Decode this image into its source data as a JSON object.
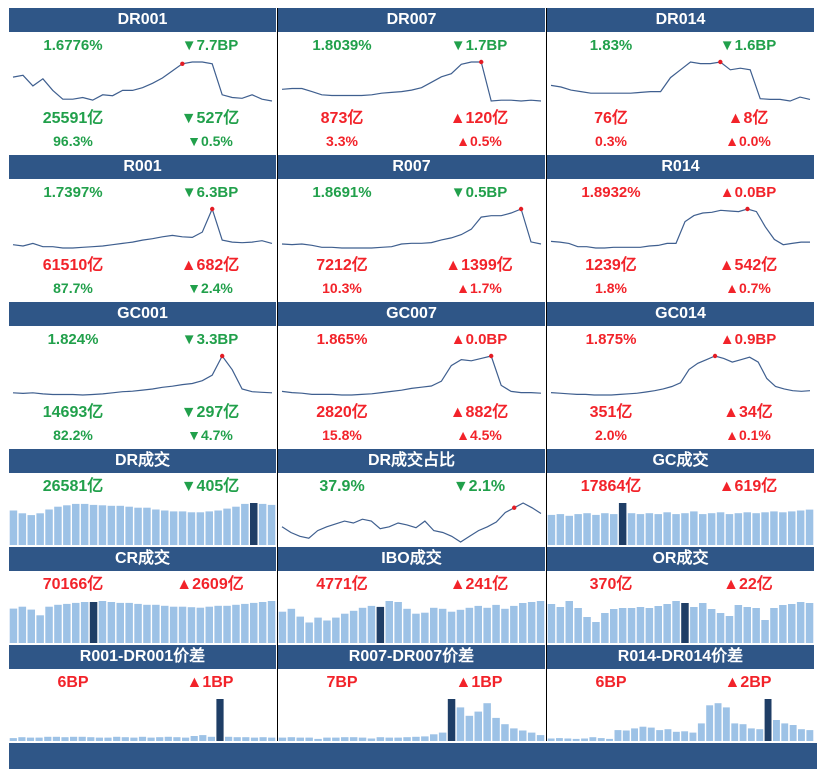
{
  "colors": {
    "header_bg": "#2f5687",
    "up": "#f2232a",
    "down": "#21a04b",
    "line": "#3f5f8f",
    "bar": "#9dc2e6",
    "bar_highlight": "#1f3e66",
    "marker": "#e31c24"
  },
  "rate_rows": [
    [
      {
        "title": "DR001",
        "rate": "1.6776%",
        "rate_dir": "down",
        "change": "▼7.7BP",
        "change_dir": "down",
        "volume": "25591亿",
        "volume_dir": "down",
        "volume_change": "▼527亿",
        "volume_change_dir": "down",
        "share": "96.3%",
        "share_dir": "down",
        "share_change": "▼0.5%",
        "share_change_dir": "down"
      },
      {
        "title": "DR007",
        "rate": "1.8039%",
        "rate_dir": "down",
        "change": "▼1.7BP",
        "change_dir": "down",
        "volume": "873亿",
        "volume_dir": "up",
        "volume_change": "▲120亿",
        "volume_change_dir": "up",
        "share": "3.3%",
        "share_dir": "up",
        "share_change": "▲0.5%",
        "share_change_dir": "up"
      },
      {
        "title": "DR014",
        "rate": "1.83%",
        "rate_dir": "down",
        "change": "▼1.6BP",
        "change_dir": "down",
        "volume": "76亿",
        "volume_dir": "up",
        "volume_change": "▲8亿",
        "volume_change_dir": "up",
        "share": "0.3%",
        "share_dir": "up",
        "share_change": "▲0.0%",
        "share_change_dir": "up"
      }
    ],
    [
      {
        "title": "R001",
        "rate": "1.7397%",
        "rate_dir": "down",
        "change": "▼6.3BP",
        "change_dir": "down",
        "volume": "61510亿",
        "volume_dir": "up",
        "volume_change": "▲682亿",
        "volume_change_dir": "up",
        "share": "87.7%",
        "share_dir": "down",
        "share_change": "▼2.4%",
        "share_change_dir": "down"
      },
      {
        "title": "R007",
        "rate": "1.8691%",
        "rate_dir": "down",
        "change": "▼0.5BP",
        "change_dir": "down",
        "volume": "7212亿",
        "volume_dir": "up",
        "volume_change": "▲1399亿",
        "volume_change_dir": "up",
        "share": "10.3%",
        "share_dir": "up",
        "share_change": "▲1.7%",
        "share_change_dir": "up"
      },
      {
        "title": "R014",
        "rate": "1.8932%",
        "rate_dir": "up",
        "change": "▲0.0BP",
        "change_dir": "up",
        "volume": "1239亿",
        "volume_dir": "up",
        "volume_change": "▲542亿",
        "volume_change_dir": "up",
        "share": "1.8%",
        "share_dir": "up",
        "share_change": "▲0.7%",
        "share_change_dir": "up"
      }
    ],
    [
      {
        "title": "GC001",
        "rate": "1.824%",
        "rate_dir": "down",
        "change": "▼3.3BP",
        "change_dir": "down",
        "volume": "14693亿",
        "volume_dir": "down",
        "volume_change": "▼297亿",
        "volume_change_dir": "down",
        "share": "82.2%",
        "share_dir": "down",
        "share_change": "▼4.7%",
        "share_change_dir": "down"
      },
      {
        "title": "GC007",
        "rate": "1.865%",
        "rate_dir": "up",
        "change": "▲0.0BP",
        "change_dir": "up",
        "volume": "2820亿",
        "volume_dir": "up",
        "volume_change": "▲882亿",
        "volume_change_dir": "up",
        "share": "15.8%",
        "share_dir": "up",
        "share_change": "▲4.5%",
        "share_change_dir": "up"
      },
      {
        "title": "GC014",
        "rate": "1.875%",
        "rate_dir": "up",
        "change": "▲0.9BP",
        "change_dir": "up",
        "volume": "351亿",
        "volume_dir": "up",
        "volume_change": "▲34亿",
        "volume_change_dir": "up",
        "share": "2.0%",
        "share_dir": "up",
        "share_change": "▲0.1%",
        "share_change_dir": "up"
      }
    ]
  ],
  "volume_rows": [
    [
      {
        "title": "DR成交",
        "kind": "bar",
        "value": "26581亿",
        "value_dir": "down",
        "change": "▼405亿",
        "change_dir": "down"
      },
      {
        "title": "DR成交占比",
        "kind": "line",
        "value": "37.9%",
        "value_dir": "down",
        "change": "▼2.1%",
        "change_dir": "down"
      },
      {
        "title": "GC成交",
        "kind": "bar",
        "value": "17864亿",
        "value_dir": "up",
        "change": "▲619亿",
        "change_dir": "up"
      }
    ],
    [
      {
        "title": "CR成交",
        "kind": "bar",
        "value": "70166亿",
        "value_dir": "up",
        "change": "▲2609亿",
        "change_dir": "up"
      },
      {
        "title": "IBO成交",
        "kind": "bar",
        "value": "4771亿",
        "value_dir": "up",
        "change": "▲241亿",
        "change_dir": "up"
      },
      {
        "title": "OR成交",
        "kind": "bar",
        "value": "370亿",
        "value_dir": "up",
        "change": "▲22亿",
        "change_dir": "up"
      }
    ],
    [
      {
        "title": "R001-DR001价差",
        "kind": "bar",
        "value": "6BP",
        "value_dir": "up",
        "change": "▲1BP",
        "change_dir": "up"
      },
      {
        "title": "R007-DR007价差",
        "kind": "bar",
        "value": "7BP",
        "value_dir": "up",
        "change": "▲1BP",
        "change_dir": "up"
      },
      {
        "title": "R014-DR014价差",
        "kind": "bar",
        "value": "6BP",
        "value_dir": "up",
        "change": "▲2BP",
        "change_dir": "up"
      }
    ]
  ],
  "chart_data": [
    {
      "id": "DR001",
      "type": "line",
      "title": "DR001",
      "values": [
        45,
        47,
        35,
        43,
        30,
        20,
        20,
        22,
        19,
        25,
        24,
        30,
        30,
        33,
        38,
        44,
        52,
        60,
        62,
        62,
        60,
        25,
        22,
        21,
        25,
        20,
        18
      ],
      "highlight_index": 17
    },
    {
      "id": "DR007",
      "type": "line",
      "title": "DR007",
      "values": [
        35,
        36,
        36,
        32,
        28,
        27,
        27,
        27,
        27,
        28,
        30,
        31,
        32,
        34,
        37,
        44,
        51,
        55,
        67,
        70,
        70,
        20,
        21,
        21,
        20,
        21,
        20
      ],
      "highlight_index": 20
    },
    {
      "id": "DR014",
      "type": "line",
      "title": "DR014",
      "values": [
        40,
        38,
        34,
        32,
        30,
        30,
        30,
        30,
        30,
        31,
        32,
        32,
        50,
        60,
        70,
        68,
        68,
        70,
        60,
        62,
        60,
        23,
        22,
        22,
        20,
        25,
        22
      ],
      "highlight_index": 17
    },
    {
      "id": "R001",
      "type": "line",
      "title": "R001",
      "values": [
        18,
        16,
        20,
        15,
        15,
        13,
        13,
        14,
        15,
        16,
        18,
        20,
        22,
        25,
        27,
        30,
        32,
        30,
        29,
        37,
        72,
        25,
        22,
        21,
        22,
        24,
        20
      ],
      "highlight_index": 20
    },
    {
      "id": "R007",
      "type": "line",
      "title": "R007",
      "values": [
        18,
        17,
        18,
        16,
        13,
        13,
        12,
        12,
        12,
        12,
        13,
        14,
        18,
        19,
        19,
        20,
        24,
        27,
        32,
        40,
        58,
        60,
        60,
        64,
        70,
        21,
        18
      ],
      "highlight_index": 24
    },
    {
      "id": "R014",
      "type": "line",
      "title": "R014",
      "values": [
        23,
        22,
        20,
        15,
        15,
        13,
        13,
        14,
        14,
        14,
        14,
        16,
        17,
        20,
        20,
        53,
        62,
        66,
        67,
        70,
        69,
        68,
        72,
        68,
        45,
        26,
        18,
        20,
        22,
        22
      ],
      "highlight_index": 22
    },
    {
      "id": "GC001",
      "type": "line",
      "title": "GC001",
      "values": [
        13,
        12,
        13,
        11,
        10,
        10,
        10,
        9,
        10,
        11,
        13,
        15,
        16,
        18,
        20,
        23,
        25,
        28,
        30,
        35,
        45,
        80,
        55,
        20,
        15,
        14,
        13
      ],
      "highlight_index": 21
    },
    {
      "id": "GC007",
      "type": "line",
      "title": "GC007",
      "values": [
        15,
        13,
        12,
        10,
        10,
        10,
        9,
        9,
        10,
        11,
        13,
        15,
        17,
        20,
        22,
        24,
        32,
        58,
        68,
        66,
        70,
        74,
        25,
        15,
        13,
        13,
        12
      ],
      "highlight_index": 21
    },
    {
      "id": "GC014",
      "type": "line",
      "title": "GC014",
      "values": [
        12,
        11,
        10,
        9,
        9,
        8,
        8,
        8,
        9,
        10,
        11,
        13,
        15,
        18,
        22,
        28,
        50,
        60,
        66,
        72,
        68,
        62,
        66,
        70,
        62,
        35,
        22,
        18,
        15,
        14,
        15
      ],
      "highlight_index": 19
    },
    {
      "id": "DR成交",
      "type": "bar",
      "title": "DR成交",
      "values": [
        74,
        68,
        64,
        68,
        76,
        82,
        85,
        88,
        88,
        86,
        85,
        84,
        84,
        82,
        80,
        80,
        76,
        74,
        72,
        72,
        70,
        70,
        72,
        74,
        78,
        82,
        88,
        90,
        88,
        86
      ],
      "highlight_index": 27
    },
    {
      "id": "DR成交占比",
      "type": "line",
      "title": "DR成交占比",
      "values": [
        30,
        24,
        20,
        18,
        26,
        30,
        33,
        36,
        34,
        38,
        36,
        28,
        30,
        34,
        32,
        29,
        36,
        26,
        24,
        20,
        14,
        20,
        26,
        30,
        35,
        45,
        50,
        55,
        50,
        44
      ],
      "highlight_index": 26
    },
    {
      "id": "GC成交",
      "type": "bar",
      "title": "GC成交",
      "values": [
        68,
        70,
        66,
        70,
        72,
        68,
        72,
        70,
        95,
        72,
        70,
        72,
        70,
        74,
        70,
        72,
        76,
        70,
        72,
        74,
        70,
        72,
        74,
        72,
        74,
        76,
        74,
        76,
        78,
        80
      ],
      "highlight_index": 8
    },
    {
      "id": "CR成交",
      "type": "bar",
      "title": "CR成交",
      "values": [
        72,
        76,
        70,
        58,
        76,
        80,
        82,
        84,
        86,
        86,
        88,
        86,
        84,
        84,
        82,
        80,
        80,
        78,
        76,
        76,
        75,
        74,
        76,
        78,
        78,
        80,
        82,
        84,
        86,
        88
      ],
      "highlight_index": 9
    },
    {
      "id": "IBO成交",
      "type": "bar",
      "title": "IBO成交",
      "values": [
        64,
        70,
        54,
        42,
        52,
        46,
        52,
        60,
        66,
        72,
        76,
        74,
        86,
        84,
        70,
        60,
        62,
        72,
        70,
        64,
        68,
        72,
        76,
        72,
        78,
        70,
        76,
        82,
        84,
        86
      ],
      "highlight_index": 11
    },
    {
      "id": "OR成交",
      "type": "bar",
      "title": "OR成交",
      "values": [
        78,
        72,
        84,
        70,
        52,
        42,
        60,
        68,
        70,
        70,
        72,
        70,
        74,
        78,
        84,
        80,
        72,
        80,
        68,
        60,
        54,
        76,
        72,
        70,
        46,
        70,
        76,
        78,
        82,
        80
      ],
      "highlight_index": 15
    },
    {
      "id": "R001-DR001价差",
      "type": "bar",
      "title": "R001-DR001价差",
      "values": [
        7,
        9,
        8,
        8,
        10,
        10,
        9,
        10,
        10,
        9,
        8,
        8,
        10,
        9,
        8,
        10,
        8,
        9,
        10,
        9,
        8,
        12,
        14,
        10,
        100,
        10,
        9,
        9,
        8,
        9,
        8
      ],
      "highlight_index": 24
    },
    {
      "id": "R007-DR007价差",
      "type": "bar",
      "title": "R007-DR007价差",
      "values": [
        8,
        9,
        8,
        8,
        5,
        8,
        8,
        9,
        9,
        8,
        6,
        9,
        8,
        8,
        9,
        10,
        11,
        16,
        20,
        100,
        80,
        60,
        70,
        90,
        55,
        40,
        30,
        25,
        20,
        14
      ],
      "highlight_index": 19
    },
    {
      "id": "R014-DR014价差",
      "type": "bar",
      "title": "R014-DR014价差",
      "values": [
        6,
        7,
        6,
        5,
        6,
        9,
        7,
        5,
        26,
        25,
        30,
        34,
        32,
        26,
        28,
        22,
        23,
        20,
        42,
        85,
        90,
        80,
        42,
        40,
        30,
        28,
        100,
        50,
        42,
        38,
        28,
        26
      ],
      "highlight_index": 26
    }
  ]
}
